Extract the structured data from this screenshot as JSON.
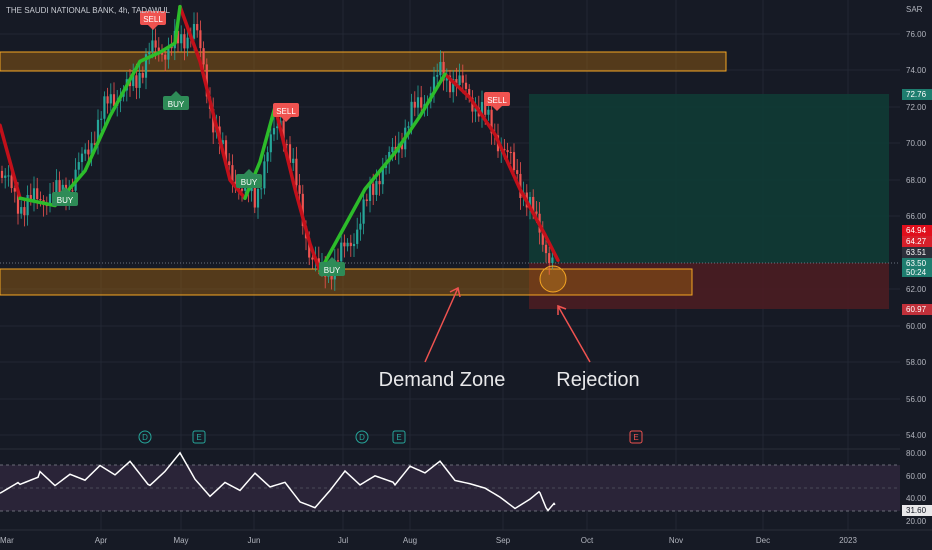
{
  "header": {
    "title": "THE SAUDI NATIONAL BANK, 4h, TADAWUL",
    "currency": "SAR"
  },
  "colors": {
    "background": "#161a25",
    "up_candle": "#26a69a",
    "down_candle": "#ef5350",
    "trend_up": "#2cbc2a",
    "trend_down": "#c2101a",
    "zone_fill": "#a0620f",
    "zone_border": "#f5a623",
    "target_fill": "#0f3b35",
    "stop_fill": "#4a1d22",
    "rsi_line": "#ffffff",
    "rsi_band": "#2a2438"
  },
  "y_axis_labels": [
    "76.00",
    "74.00",
    "72.00",
    "70.00",
    "68.00",
    "66.00",
    "62.00",
    "60.00",
    "58.00",
    "56.00",
    "54.00"
  ],
  "rsi_axis_labels": [
    "80.00",
    "60.00",
    "40.00",
    "20.00"
  ],
  "price_tags": {
    "target": "72.76",
    "tag_a": "64.94",
    "tag_b": "64.27",
    "tag_c": "63.51",
    "last_price": "63.50",
    "countdown": "50:24",
    "stop": "60.97",
    "rsi_value": "31.60"
  },
  "x_axis_labels": [
    "Mar",
    "Apr",
    "May",
    "Jun",
    "Jul",
    "Aug",
    "Sep",
    "Oct",
    "Nov",
    "Dec",
    "2023"
  ],
  "signals": {
    "sell_1": "SELL",
    "buy_1": "BUY",
    "buy_2": "BUY",
    "sell_2": "SELL",
    "buy_3": "BUY",
    "buy_4": "BUY",
    "sell_3": "SELL"
  },
  "event_markers": {
    "d_1": "D",
    "e_1": "E",
    "d_2": "D",
    "e_2": "E",
    "e_3": "E"
  },
  "annotations": {
    "demand": "Demand Zone",
    "rejection": "Rejection"
  },
  "chart_data": {
    "type": "candlestick",
    "symbol": "THE SAUDI NATIONAL BANK",
    "interval": "4h",
    "exchange": "TADAWUL",
    "ylim": [
      53.0,
      77.5
    ],
    "resistance_zone": [
      74.0,
      75.0
    ],
    "demand_zone": [
      61.6,
      63.1
    ],
    "position_entry": 63.5,
    "position_target": 72.76,
    "position_stop": 60.97,
    "last_price": 63.5,
    "rsi": {
      "ylim": [
        15,
        85
      ],
      "levels": [
        70,
        30
      ],
      "last": 31.6,
      "points": [
        [
          0,
          45
        ],
        [
          20,
          55
        ],
        [
          40,
          62
        ],
        [
          55,
          50
        ],
        [
          70,
          60
        ],
        [
          85,
          55
        ],
        [
          100,
          68
        ],
        [
          115,
          60
        ],
        [
          130,
          72
        ],
        [
          150,
          50
        ],
        [
          165,
          62
        ],
        [
          180,
          78
        ],
        [
          195,
          55
        ],
        [
          210,
          40
        ],
        [
          225,
          52
        ],
        [
          240,
          45
        ],
        [
          255,
          60
        ],
        [
          270,
          48
        ],
        [
          285,
          52
        ],
        [
          300,
          35
        ],
        [
          315,
          30
        ],
        [
          330,
          45
        ],
        [
          345,
          62
        ],
        [
          360,
          50
        ],
        [
          375,
          58
        ],
        [
          395,
          52
        ],
        [
          410,
          68
        ],
        [
          425,
          62
        ],
        [
          440,
          72
        ],
        [
          455,
          55
        ],
        [
          470,
          52
        ],
        [
          485,
          48
        ],
        [
          500,
          40
        ],
        [
          515,
          30
        ],
        [
          530,
          38
        ],
        [
          540,
          45
        ],
        [
          548,
          28
        ],
        [
          555,
          35
        ]
      ]
    },
    "price_line": [
      [
        0,
        68.5
      ],
      [
        20,
        66.6
      ],
      [
        40,
        67.0
      ],
      [
        55,
        67.2
      ],
      [
        70,
        67.6
      ],
      [
        90,
        70.0
      ],
      [
        110,
        72.5
      ],
      [
        130,
        73.0
      ],
      [
        150,
        75.0
      ],
      [
        165,
        75.2
      ],
      [
        180,
        75.5
      ],
      [
        195,
        76.5
      ],
      [
        210,
        72.0
      ],
      [
        225,
        69.0
      ],
      [
        240,
        67.6
      ],
      [
        255,
        67.0
      ],
      [
        265,
        69.0
      ],
      [
        280,
        71.5
      ],
      [
        295,
        68.0
      ],
      [
        310,
        64.0
      ],
      [
        320,
        62.8
      ],
      [
        335,
        63.5
      ],
      [
        350,
        64.5
      ],
      [
        365,
        66.5
      ],
      [
        380,
        68.5
      ],
      [
        395,
        69.5
      ],
      [
        410,
        71.5
      ],
      [
        425,
        72.5
      ],
      [
        440,
        73.8
      ],
      [
        455,
        73.5
      ],
      [
        470,
        72.5
      ],
      [
        485,
        71.5
      ],
      [
        500,
        70.0
      ],
      [
        515,
        68.5
      ],
      [
        530,
        66.5
      ],
      [
        545,
        64.5
      ],
      [
        555,
        63.0
      ]
    ],
    "series": [
      {
        "name": "trend_down",
        "segments": [
          [
            [
              0,
              71.0
            ],
            [
              20,
              67.0
            ]
          ],
          [
            [
              180,
              77.5
            ],
            [
              200,
              74.5
            ],
            [
              230,
              68.0
            ],
            [
              245,
              67.0
            ]
          ],
          [
            [
              275,
              72.0
            ],
            [
              295,
              67.5
            ],
            [
              310,
              64.5
            ],
            [
              320,
              63.0
            ]
          ],
          [
            [
              445,
              73.8
            ],
            [
              470,
              72.5
            ],
            [
              495,
              70.5
            ],
            [
              520,
              67.5
            ],
            [
              545,
              65.0
            ],
            [
              558,
              63.6
            ]
          ]
        ]
      },
      {
        "name": "trend_up",
        "segments": [
          [
            [
              20,
              67.0
            ],
            [
              55,
              66.6
            ],
            [
              85,
              68.5
            ],
            [
              110,
              71.5
            ],
            [
              140,
              74.5
            ],
            [
              160,
              75.0
            ],
            [
              175,
              75.5
            ],
            [
              180,
              77.5
            ]
          ],
          [
            [
              245,
              67.0
            ],
            [
              260,
              69.0
            ],
            [
              275,
              72.0
            ]
          ],
          [
            [
              320,
              63.0
            ],
            [
              340,
              65.0
            ],
            [
              365,
              67.5
            ],
            [
              395,
              69.5
            ],
            [
              420,
              71.5
            ],
            [
              445,
              73.8
            ]
          ]
        ]
      }
    ]
  }
}
